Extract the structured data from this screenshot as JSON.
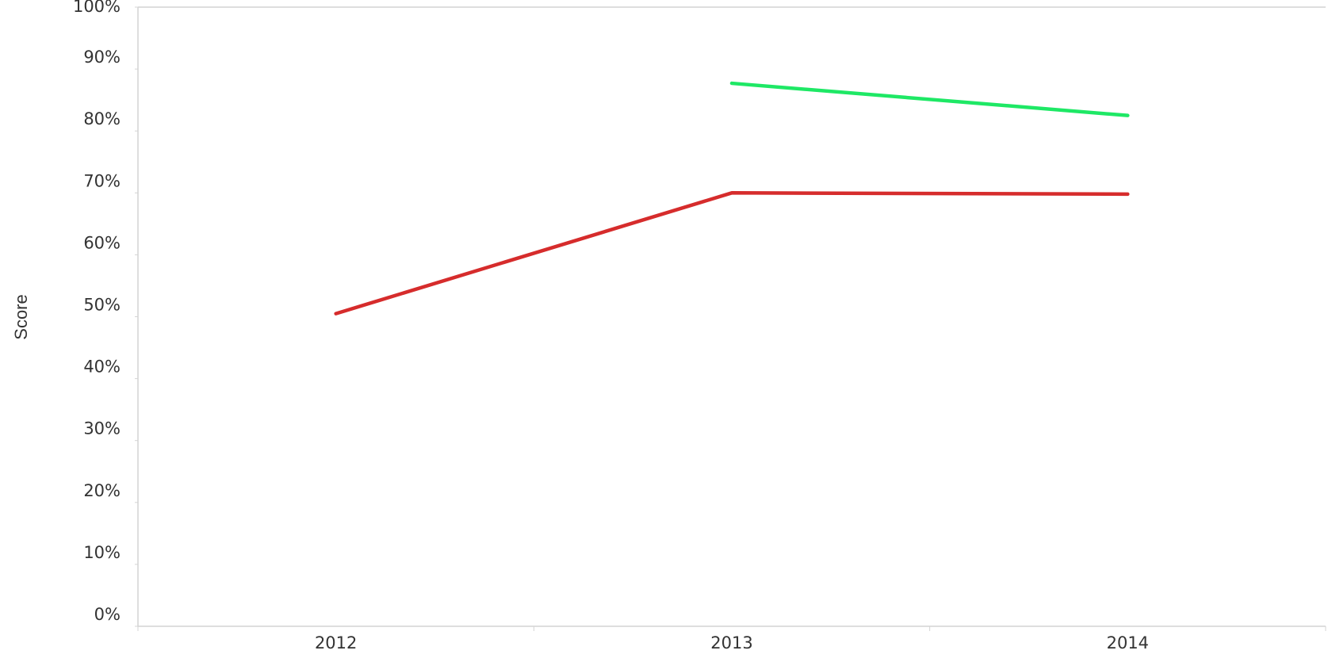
{
  "chart_data": {
    "type": "line",
    "y_label": "Score",
    "categories": [
      "2012",
      "2013",
      "2014"
    ],
    "series": [
      {
        "color": "#d62c2c",
        "values": [
          50.5,
          70,
          69.8
        ]
      },
      {
        "color": "#1ee865",
        "values": [
          null,
          87.7,
          82.5
        ]
      }
    ],
    "ylim": [
      0,
      100
    ],
    "yticks": [
      {
        "value": 0,
        "label": "0%"
      },
      {
        "value": 10,
        "label": "10%"
      },
      {
        "value": 20,
        "label": "20%"
      },
      {
        "value": 30,
        "label": "30%"
      },
      {
        "value": 40,
        "label": "40%"
      },
      {
        "value": 50,
        "label": "50%"
      },
      {
        "value": 60,
        "label": "60%"
      },
      {
        "value": 70,
        "label": "70%"
      },
      {
        "value": 80,
        "label": "80%"
      },
      {
        "value": 90,
        "label": "90%"
      },
      {
        "value": 100,
        "label": "100%"
      }
    ],
    "grid": false
  }
}
